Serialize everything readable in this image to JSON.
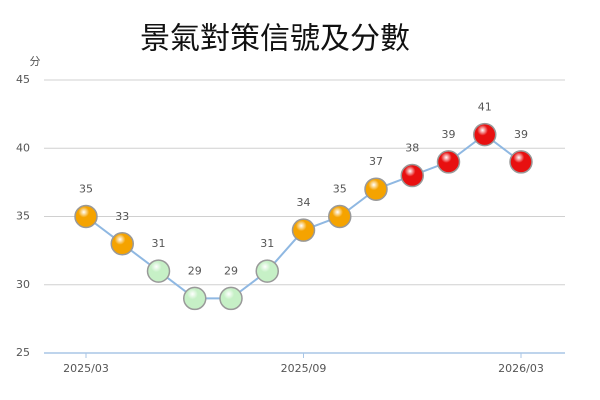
{
  "chart_data": {
    "type": "line",
    "title": "景氣對策信號及分數",
    "y_label": "分",
    "categories": [
      "2025/03",
      null,
      null,
      null,
      null,
      null,
      "2025/09",
      null,
      null,
      null,
      null,
      null,
      "2026/03"
    ],
    "series": [
      {
        "name": "分數",
        "color": "#8fb8e2",
        "values": [
          35,
          33,
          31,
          29,
          29,
          31,
          34,
          35,
          37,
          38,
          39,
          41,
          39
        ],
        "point_colors": [
          "#f5a300",
          "#f5a300",
          "#c6f0c6",
          "#c6f0c6",
          "#c6f0c6",
          "#c6f0c6",
          "#f5a300",
          "#f5a300",
          "#f5a300",
          "#e81010",
          "#e81010",
          "#e81010",
          "#e81010"
        ]
      }
    ],
    "ylim": [
      25,
      45
    ],
    "yticks": [
      25,
      30,
      35,
      40,
      45
    ],
    "grid": true
  }
}
